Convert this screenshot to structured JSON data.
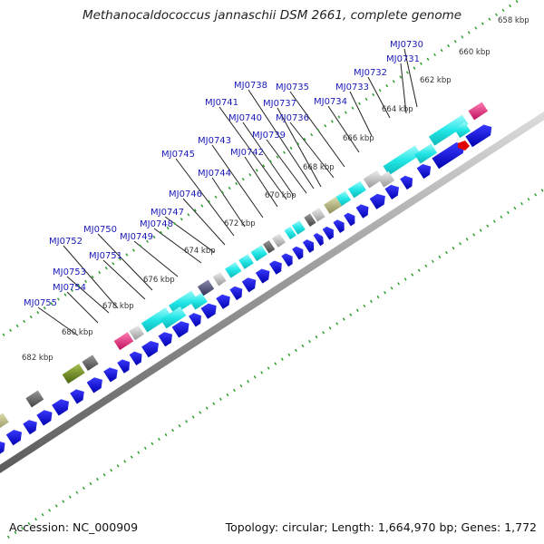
{
  "title": "Methanocaldococcus jannaschii DSM 2661, complete genome",
  "accession_text": "Accession: NC_000909",
  "summary_text": "Topology: circular; Length: 1,664,970 bp; Genes: 1,772",
  "kbp_labels": [
    "658 kbp",
    "660 kbp",
    "662 kbp",
    "664 kbp",
    "666 kbp",
    "668 kbp",
    "670 kbp",
    "672 kbp",
    "674 kbp",
    "676 kbp",
    "678 kbp",
    "680 kbp",
    "682 kbp"
  ],
  "gene_labels": [
    "MJ0730",
    "MJ0731",
    "MJ0732",
    "MJ0733",
    "MJ0734",
    "MJ0735",
    "MJ0736",
    "MJ0737",
    "MJ0738",
    "MJ0739",
    "MJ0740",
    "MJ0741",
    "MJ0742",
    "MJ0743",
    "MJ0744",
    "MJ0745",
    "MJ0746",
    "MJ0747",
    "MJ0748",
    "MJ0749",
    "MJ0750",
    "MJ0751",
    "MJ0752",
    "MJ0753",
    "MJ0754",
    "MJ0755"
  ],
  "colors": {
    "gene_arrow": "#0a0ad8",
    "cyan_feature": "#22e6e6",
    "magenta_feature": "#e0207a",
    "gray_feature": "#666666",
    "light_gray_feature": "#bbbbbb",
    "olive_feature": "#6e8a1e",
    "khaki_feature": "#b4b47a",
    "slate_feature": "#50507a",
    "backbone": "#9a9a9a",
    "dotted_ring": "#2e9e2e",
    "label_blue": "#1a1ab8",
    "marker_red": "#e00000"
  }
}
